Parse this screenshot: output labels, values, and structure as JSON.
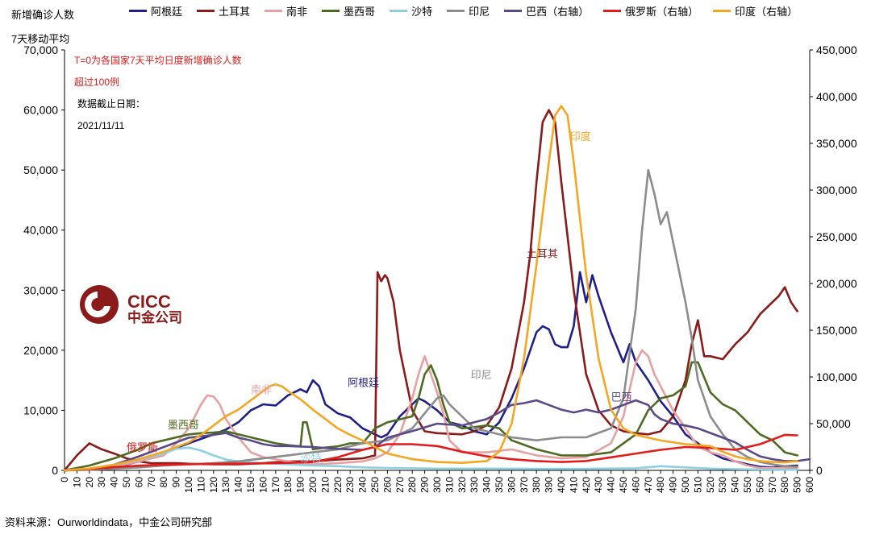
{
  "header": {
    "left_axis_title_1": "新增确诊人数",
    "left_axis_title_2": "7天移动平均"
  },
  "legend": [
    {
      "name": "阿根廷",
      "color": "#1f1f8a"
    },
    {
      "name": "土耳其",
      "color": "#8b1a1a"
    },
    {
      "name": "南非",
      "color": "#e8a0a0"
    },
    {
      "name": "墨西哥",
      "color": "#4e6b22"
    },
    {
      "name": "沙特",
      "color": "#8ecfe0"
    },
    {
      "name": "印尼",
      "color": "#8c8c8c"
    },
    {
      "name": "巴西（右轴）",
      "color": "#5b4a8a"
    },
    {
      "name": "俄罗斯（右轴）",
      "color": "#e31b1b"
    },
    {
      "name": "印度（右轴）",
      "color": "#f5a623"
    }
  ],
  "notes": {
    "note1": "T=0为各国家7天平均日度新增确诊人数",
    "note2": "超过100例",
    "note3": "数据截止日期：",
    "note4": "2021/11/11"
  },
  "logo": {
    "name": "CICC",
    "cn": "中金公司"
  },
  "source": "资料来源：Ourworldindata，中金公司研究部",
  "chart_data": {
    "type": "line",
    "xlim": [
      0,
      600
    ],
    "x_ticks": [
      0,
      10,
      20,
      30,
      40,
      50,
      60,
      70,
      80,
      90,
      100,
      110,
      120,
      130,
      140,
      150,
      160,
      170,
      180,
      190,
      200,
      210,
      220,
      230,
      240,
      250,
      260,
      270,
      280,
      290,
      300,
      310,
      320,
      330,
      340,
      350,
      360,
      370,
      380,
      390,
      400,
      410,
      420,
      430,
      440,
      450,
      460,
      470,
      480,
      490,
      500,
      510,
      520,
      530,
      540,
      550,
      560,
      570,
      580,
      590,
      600
    ],
    "y_left": {
      "range": [
        0,
        70000
      ],
      "ticks": [
        "0",
        "10,000",
        "20,000",
        "30,000",
        "40,000",
        "50,000",
        "60,000",
        "70,000"
      ]
    },
    "y_right": {
      "range": [
        0,
        450000
      ],
      "ticks": [
        "0",
        "50,000",
        "100,000",
        "150,000",
        "200,000",
        "250,000",
        "300,000",
        "350,000",
        "400,000",
        "450,000"
      ]
    },
    "annotations": [
      {
        "text": "阿根廷",
        "color": "#1f1f8a",
        "x": 228,
        "y_left": 14000
      },
      {
        "text": "土耳其",
        "color": "#8b1a1a",
        "x": 372,
        "y_left": 35500
      },
      {
        "text": "南非",
        "color": "#e8a0a0",
        "x": 150,
        "y_left": 12800
      },
      {
        "text": "墨西哥",
        "color": "#4e6b22",
        "x": 83,
        "y_left": 7000
      },
      {
        "text": "沙特",
        "color": "#8ecfe0",
        "x": 190,
        "y_left": 1400
      },
      {
        "text": "印尼",
        "color": "#8c8c8c",
        "x": 327,
        "y_left": 15300
      },
      {
        "text": "巴西",
        "color": "#5b4a8a",
        "x": 440,
        "y_left": 11600
      },
      {
        "text": "俄罗斯",
        "color": "#e31b1b",
        "x": 50,
        "y_left": 3200
      },
      {
        "text": "印度",
        "color": "#f5a623",
        "x": 407,
        "y_left": 55000
      }
    ],
    "series": [
      {
        "name": "阿根廷",
        "axis": "left",
        "color": "#1f1f8a",
        "x": [
          0,
          20,
          40,
          60,
          80,
          100,
          120,
          130,
          140,
          150,
          160,
          170,
          180,
          190,
          195,
          200,
          205,
          210,
          220,
          230,
          240,
          250,
          255,
          260,
          270,
          280,
          285,
          290,
          300,
          310,
          320,
          330,
          340,
          350,
          360,
          370,
          380,
          385,
          390,
          395,
          400,
          405,
          410,
          415,
          420,
          425,
          430,
          440,
          450,
          455,
          460,
          470,
          480,
          490,
          500,
          510,
          520,
          530,
          540,
          550,
          560,
          570,
          580,
          590
        ],
        "y": [
          0,
          200,
          500,
          1500,
          3000,
          4500,
          6000,
          6800,
          8000,
          10000,
          11000,
          10800,
          12500,
          13500,
          13000,
          15000,
          14000,
          11000,
          9500,
          8800,
          7000,
          6000,
          5500,
          6000,
          9000,
          11000,
          12000,
          11500,
          10000,
          8000,
          7500,
          6500,
          6000,
          8000,
          12000,
          17000,
          23000,
          24000,
          23500,
          21000,
          20500,
          20500,
          24000,
          33000,
          28000,
          32500,
          29000,
          23000,
          18000,
          21000,
          18000,
          15000,
          11500,
          9000,
          6000,
          4500,
          3000,
          2000,
          1500,
          1000,
          600,
          500,
          700,
          800
        ]
      },
      {
        "name": "土耳其",
        "axis": "left",
        "color": "#8b1a1a",
        "x": [
          0,
          10,
          20,
          25,
          30,
          40,
          50,
          60,
          70,
          80,
          90,
          100,
          120,
          140,
          160,
          180,
          200,
          220,
          240,
          250,
          252,
          255,
          258,
          260,
          265,
          270,
          280,
          290,
          300,
          320,
          330,
          340,
          350,
          360,
          370,
          375,
          380,
          385,
          390,
          395,
          400,
          410,
          420,
          430,
          440,
          450,
          460,
          470,
          480,
          490,
          500,
          505,
          510,
          515,
          520,
          530,
          540,
          550,
          560,
          570,
          575,
          580,
          585,
          590
        ],
        "y": [
          0,
          2500,
          4500,
          4000,
          3500,
          2800,
          2000,
          1500,
          1200,
          1200,
          1200,
          1100,
          1000,
          1000,
          1200,
          1500,
          1500,
          1800,
          2000,
          2500,
          33000,
          31500,
          32500,
          32000,
          28000,
          20000,
          10000,
          6500,
          6200,
          6000,
          6500,
          7500,
          10500,
          17000,
          28000,
          36000,
          48000,
          58000,
          60000,
          58000,
          48000,
          30000,
          16000,
          10000,
          7500,
          6500,
          6200,
          6000,
          6500,
          9000,
          15000,
          21000,
          25000,
          19000,
          19000,
          18500,
          21000,
          23000,
          26000,
          28000,
          29000,
          30500,
          28000,
          26500
        ]
      },
      {
        "name": "南非",
        "axis": "left",
        "color": "#e8a0a0",
        "x": [
          0,
          20,
          40,
          60,
          80,
          90,
          100,
          110,
          115,
          120,
          125,
          130,
          140,
          150,
          160,
          180,
          200,
          220,
          240,
          250,
          260,
          270,
          280,
          285,
          290,
          295,
          300,
          305,
          310,
          320,
          330,
          340,
          360,
          380,
          400,
          420,
          440,
          450,
          460,
          465,
          470,
          475,
          480,
          490,
          500,
          510,
          520,
          530,
          540,
          550,
          560,
          580,
          590
        ],
        "y": [
          0,
          200,
          600,
          1500,
          2500,
          4500,
          7000,
          11000,
          12500,
          12300,
          11000,
          8500,
          5500,
          3000,
          2200,
          1500,
          1000,
          1200,
          1500,
          2000,
          3000,
          6000,
          12000,
          16000,
          19000,
          16000,
          13000,
          9500,
          5000,
          3000,
          3000,
          3000,
          3500,
          2500,
          2000,
          2200,
          4500,
          9000,
          18000,
          20000,
          19000,
          16000,
          14000,
          10000,
          7000,
          4000,
          3000,
          2500,
          1500,
          800,
          400,
          400,
          400
        ]
      },
      {
        "name": "墨西哥",
        "axis": "left",
        "color": "#4e6b22",
        "x": [
          0,
          20,
          40,
          60,
          70,
          80,
          90,
          100,
          110,
          120,
          130,
          140,
          150,
          160,
          170,
          180,
          190,
          192,
          195,
          200,
          210,
          220,
          230,
          240,
          250,
          260,
          270,
          280,
          285,
          290,
          295,
          300,
          305,
          310,
          320,
          330,
          340,
          350,
          360,
          380,
          400,
          420,
          440,
          450,
          460,
          470,
          475,
          480,
          490,
          500,
          505,
          510,
          520,
          530,
          540,
          550,
          560,
          570,
          580,
          590
        ],
        "y": [
          0,
          800,
          2000,
          3500,
          4500,
          5000,
          5500,
          6000,
          6200,
          6300,
          6500,
          6000,
          5500,
          5000,
          4500,
          4200,
          4000,
          8000,
          8000,
          3500,
          3800,
          4000,
          4500,
          4500,
          7000,
          8000,
          8500,
          9000,
          12000,
          16000,
          17500,
          15000,
          11000,
          8000,
          7000,
          7200,
          7500,
          7000,
          5000,
          3500,
          2500,
          2500,
          3000,
          4500,
          6000,
          10000,
          11000,
          12000,
          12500,
          14000,
          18000,
          18000,
          13000,
          11000,
          10000,
          8000,
          6000,
          5000,
          3000,
          2500
        ]
      },
      {
        "name": "沙特",
        "axis": "left",
        "color": "#8ecfe0",
        "x": [
          0,
          20,
          40,
          60,
          80,
          90,
          100,
          110,
          120,
          130,
          140,
          160,
          180,
          200,
          220,
          240,
          260,
          300,
          340,
          380,
          420,
          460,
          480,
          500,
          520,
          540,
          560,
          590
        ],
        "y": [
          0,
          300,
          900,
          1800,
          2800,
          3600,
          3800,
          3300,
          2500,
          1800,
          1500,
          1200,
          1000,
          800,
          700,
          500,
          400,
          300,
          300,
          250,
          250,
          350,
          700,
          500,
          300,
          200,
          150,
          100
        ]
      },
      {
        "name": "印尼",
        "axis": "left",
        "color": "#8c8c8c",
        "x": [
          0,
          20,
          40,
          60,
          80,
          100,
          120,
          140,
          160,
          180,
          200,
          220,
          240,
          260,
          280,
          290,
          300,
          305,
          310,
          320,
          330,
          340,
          360,
          380,
          400,
          420,
          440,
          450,
          460,
          465,
          470,
          475,
          480,
          485,
          490,
          495,
          500,
          505,
          510,
          520,
          530,
          540,
          550,
          560,
          570,
          580,
          590
        ],
        "y": [
          0,
          100,
          300,
          500,
          800,
          1000,
          1200,
          1500,
          2000,
          2500,
          3000,
          3500,
          4500,
          5000,
          7000,
          9500,
          12000,
          12500,
          11000,
          9000,
          7000,
          6500,
          5500,
          5000,
          5500,
          5500,
          7000,
          12000,
          27000,
          40000,
          50000,
          46000,
          41000,
          43000,
          38000,
          33000,
          28000,
          22000,
          15000,
          9000,
          6000,
          3500,
          2200,
          1400,
          1000,
          700,
          600
        ]
      },
      {
        "name": "巴西（右轴）",
        "axis": "right",
        "color": "#5b4a8a",
        "x": [
          0,
          20,
          40,
          60,
          80,
          100,
          120,
          130,
          140,
          150,
          160,
          170,
          180,
          200,
          220,
          240,
          250,
          260,
          280,
          300,
          320,
          340,
          350,
          360,
          370,
          380,
          390,
          400,
          410,
          420,
          430,
          440,
          450,
          460,
          470,
          475,
          480,
          490,
          500,
          510,
          520,
          530,
          540,
          550,
          560,
          570,
          580,
          590,
          600
        ],
        "y": [
          0,
          1500,
          6000,
          15000,
          25000,
          35000,
          38000,
          40000,
          35000,
          32000,
          28000,
          26000,
          26000,
          25000,
          23000,
          22000,
          25000,
          35000,
          42000,
          50000,
          48000,
          55000,
          62000,
          70000,
          72000,
          75000,
          70000,
          65000,
          62000,
          65000,
          62000,
          65000,
          70000,
          75000,
          70000,
          60000,
          55000,
          50000,
          48000,
          45000,
          40000,
          35000,
          30000,
          22000,
          15000,
          12000,
          10000,
          10000,
          12000
        ]
      },
      {
        "name": "俄罗斯（右轴）",
        "axis": "right",
        "color": "#e31b1b",
        "x": [
          0,
          20,
          40,
          60,
          80,
          100,
          120,
          140,
          160,
          180,
          200,
          220,
          240,
          260,
          280,
          300,
          320,
          340,
          360,
          380,
          400,
          420,
          440,
          460,
          480,
          500,
          520,
          540,
          560,
          570,
          580,
          590
        ],
        "y": [
          0,
          1500,
          3500,
          5000,
          6000,
          6500,
          7000,
          7200,
          7500,
          8000,
          9000,
          14000,
          22000,
          28000,
          28000,
          26000,
          20000,
          15000,
          12000,
          10000,
          9000,
          10000,
          14000,
          18000,
          22000,
          25000,
          24000,
          22000,
          28000,
          33000,
          38000,
          37500
        ]
      },
      {
        "name": "印度（右轴）",
        "axis": "right",
        "color": "#f5a623",
        "x": [
          0,
          20,
          40,
          60,
          80,
          100,
          110,
          120,
          130,
          140,
          150,
          160,
          165,
          170,
          175,
          180,
          190,
          200,
          210,
          220,
          230,
          240,
          250,
          260,
          280,
          300,
          320,
          340,
          350,
          360,
          370,
          380,
          390,
          395,
          400,
          405,
          410,
          420,
          430,
          440,
          450,
          460,
          470,
          480,
          490,
          500,
          510,
          520,
          530,
          540,
          550,
          560,
          570,
          580,
          590
        ],
        "y": [
          0,
          2000,
          6000,
          12000,
          20000,
          30000,
          38000,
          48000,
          58000,
          65000,
          75000,
          85000,
          90000,
          92000,
          90000,
          85000,
          76000,
          65000,
          55000,
          45000,
          38000,
          32000,
          25000,
          18000,
          12000,
          9000,
          8000,
          10000,
          20000,
          50000,
          120000,
          220000,
          330000,
          380000,
          390000,
          380000,
          330000,
          210000,
          120000,
          65000,
          45000,
          38000,
          35000,
          32000,
          30000,
          28000,
          27000,
          26000,
          20000,
          15000,
          12000,
          10000,
          9000,
          8500,
          10000
        ]
      }
    ]
  }
}
